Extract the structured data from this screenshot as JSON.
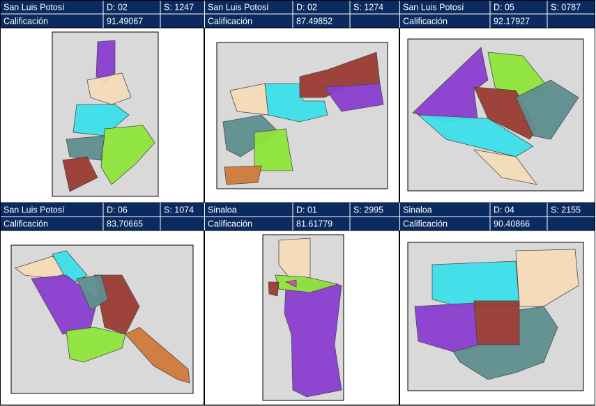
{
  "panels": [
    {
      "state": "San Luis Potosí",
      "district": "D: 02",
      "section": "S: 1247",
      "label": "Calificación",
      "score": "91.49067"
    },
    {
      "state": "San Luis Potosí",
      "district": "D: 02",
      "section": "S: 1274",
      "label": "Calificación",
      "score": "87.49852"
    },
    {
      "state": "San Luis Potosí",
      "district": "D: 05",
      "section": "S: 0787",
      "label": "Calificación",
      "score": "92.17927"
    },
    {
      "state": "San Luis Potosí",
      "district": "D: 06",
      "section": "S: 1074",
      "label": "Calificación",
      "score": "83.70665"
    },
    {
      "state": "Sinaloa",
      "district": "D: 01",
      "section": "S: 2995",
      "label": "Calificación",
      "score": "81.61779"
    },
    {
      "state": "Sinaloa",
      "district": "D: 04",
      "section": "S: 2155",
      "label": "Calificación",
      "score": "90.40866"
    }
  ]
}
